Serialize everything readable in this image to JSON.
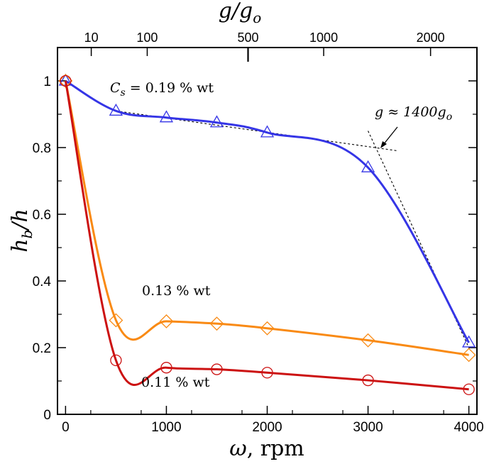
{
  "chart_data": {
    "type": "line",
    "xlabel_symbol": "ω",
    "xlabel_unit": ", rpm",
    "ylabel_main": "h",
    "ylabel_sub": "b",
    "ylabel_tail": "/h",
    "top_axis_label": "g/g",
    "top_axis_label_sub": "o",
    "xlim": [
      -80,
      4080
    ],
    "ylim": [
      0,
      1.1
    ],
    "x_ticks": [
      0,
      1000,
      2000,
      3000,
      4000
    ],
    "x_tick_labels": [
      "0",
      "1000",
      "2000",
      "3000",
      "4000"
    ],
    "y_ticks": [
      0,
      0.2,
      0.4,
      0.6,
      0.8,
      1
    ],
    "y_tick_labels": [
      "0",
      "0.2",
      "0.4",
      "0.6",
      "0.8",
      "1"
    ],
    "top_ticks": [
      {
        "label": "10",
        "rpm": 255
      },
      {
        "label": "100",
        "rpm": 810
      },
      {
        "label": "500",
        "rpm": 1810
      },
      {
        "label": "1000",
        "rpm": 2560
      },
      {
        "label": "2000",
        "rpm": 3620
      }
    ],
    "series": [
      {
        "name": "C_s = 0.19 % wt",
        "color": "#3535e6",
        "marker": "triangle",
        "x": [
          0,
          500,
          1000,
          1500,
          2000,
          3000,
          4000
        ],
        "y": [
          1.0,
          0.91,
          0.89,
          0.875,
          0.845,
          0.74,
          0.215
        ]
      },
      {
        "name": "0.13 % wt",
        "color": "#f98a14",
        "marker": "diamond",
        "x": [
          0,
          500,
          1000,
          1500,
          2000,
          3000,
          4000
        ],
        "y": [
          1.0,
          0.282,
          0.279,
          0.272,
          0.258,
          0.222,
          0.178
        ]
      },
      {
        "name": "0.11 % wt",
        "color": "#cc1111",
        "marker": "circle",
        "x": [
          0,
          500,
          1000,
          1500,
          2000,
          3000,
          4000
        ],
        "y": [
          1.0,
          0.162,
          0.14,
          0.135,
          0.125,
          0.102,
          0.075
        ]
      }
    ],
    "fit_lines": [
      {
        "x": [
          500,
          3300
        ],
        "y": [
          0.91,
          0.79
        ]
      },
      {
        "x": [
          3000,
          4000
        ],
        "y": [
          0.85,
          0.2
        ]
      }
    ],
    "annotations": {
      "series1_prefix": "C",
      "series1_sub": "s",
      "series1_rest": " = 0.19 % wt",
      "series2": "0.13 % wt",
      "series3": "0.11 % wt",
      "transition_prefix": "g",
      "transition_approx": " ≈ ",
      "transition_value": "1400g",
      "transition_sub": "o",
      "transition_point": {
        "rpm": 3100,
        "value": 0.8
      }
    }
  }
}
